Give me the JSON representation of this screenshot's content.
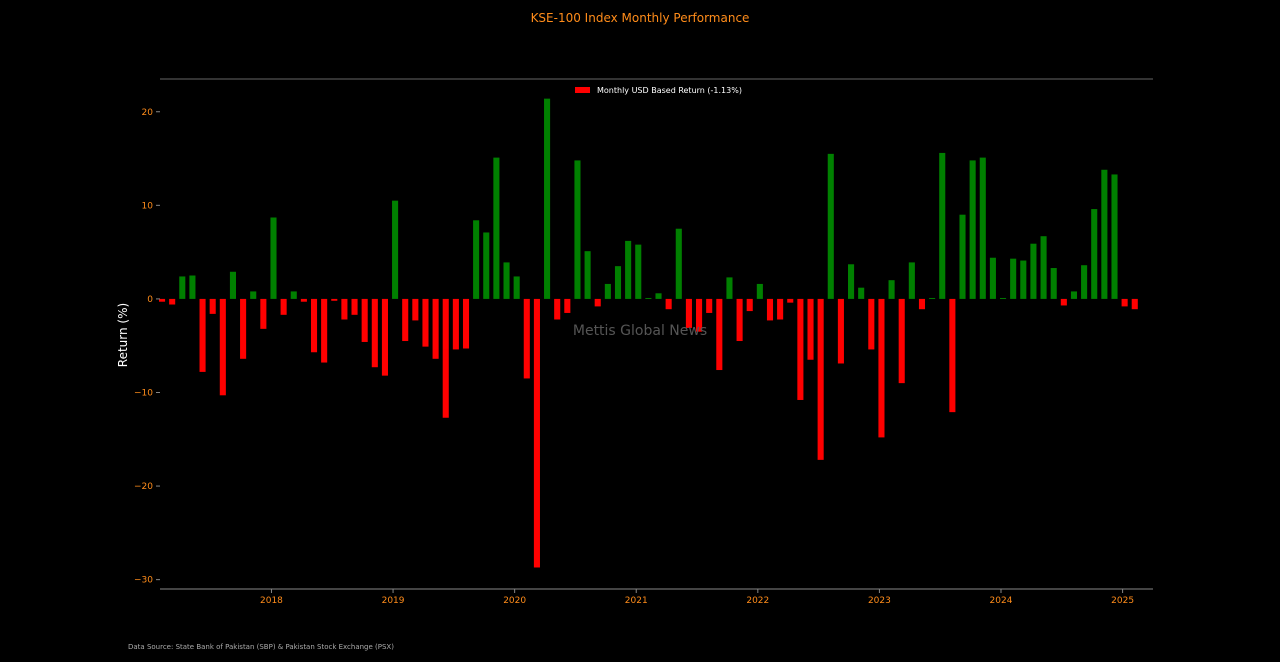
{
  "chart_data": {
    "type": "bar",
    "title": "KSE-100 Index Monthly Performance",
    "ylabel": "Return (%)",
    "xlabel": "",
    "ylim": [
      -31,
      23.5
    ],
    "xlim": [
      "2017-02",
      "2025-04"
    ],
    "yticks": [
      -30,
      -20,
      -10,
      0,
      10,
      20
    ],
    "ytick_labels": [
      "−30",
      "−20",
      "−10",
      "0",
      "10",
      "20"
    ],
    "xticks": [
      "2018-01",
      "2019-01",
      "2020-01",
      "2021-01",
      "2022-01",
      "2023-01",
      "2024-01",
      "2025-01"
    ],
    "xtick_labels": [
      "2018",
      "2019",
      "2020",
      "2021",
      "2022",
      "2023",
      "2024",
      "2025"
    ],
    "legend": "Monthly USD Based Return (-1.13%)",
    "legend_position": "top-center",
    "grid": false,
    "colors": {
      "positive": "#008000",
      "negative": "#ff0000"
    },
    "series": [
      {
        "name": "Monthly USD Based Return (-1.13%)",
        "start": "2017-02",
        "values": [
          -0.3,
          -0.6,
          2.4,
          2.5,
          -7.8,
          -1.6,
          -10.3,
          2.9,
          -6.4,
          0.8,
          -3.2,
          8.7,
          -1.7,
          0.8,
          -0.3,
          -5.7,
          -6.8,
          -0.2,
          -2.2,
          -1.7,
          -4.6,
          -7.3,
          -8.2,
          10.5,
          -4.5,
          -2.3,
          -5.1,
          -6.4,
          -12.7,
          -5.4,
          -5.3,
          8.4,
          7.1,
          15.1,
          3.9,
          2.4,
          -8.5,
          -28.7,
          21.4,
          -2.2,
          -1.5,
          14.8,
          5.1,
          -0.8,
          1.6,
          3.5,
          6.2,
          5.8,
          0.1,
          0.6,
          -1.1,
          7.5,
          -3.1,
          -3.5,
          -1.5,
          -7.6,
          2.3,
          -4.5,
          -1.3,
          1.6,
          -2.3,
          -2.2,
          -0.4,
          -10.8,
          -6.5,
          -17.2,
          15.5,
          -6.9,
          3.7,
          1.2,
          -5.4,
          -14.8,
          2.0,
          -9.0,
          3.9,
          -1.1,
          0.1,
          15.6,
          -12.1,
          9.0,
          14.8,
          15.1,
          4.4,
          0.1,
          4.3,
          4.1,
          5.9,
          6.7,
          3.3,
          -0.7,
          0.8,
          3.6,
          9.6,
          13.8,
          13.3,
          -0.8,
          -1.1
        ]
      }
    ]
  },
  "watermark": "Mettis Global News",
  "source": "Data Source: State Bank of Pakistan (SBP) & Pakistan Stock Exchange (PSX)"
}
